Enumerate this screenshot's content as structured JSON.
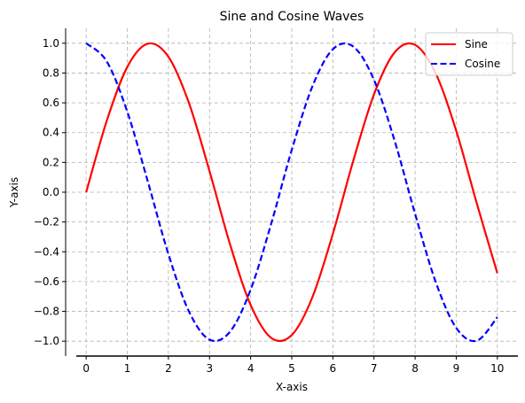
{
  "chart_data": {
    "type": "line",
    "title": "Sine and Cosine Waves",
    "xlabel": "X-axis",
    "ylabel": "Y-axis",
    "xlim": [
      -0.5,
      10.5
    ],
    "ylim": [
      -1.1,
      1.1
    ],
    "xticks": [
      0,
      1,
      2,
      3,
      4,
      5,
      6,
      7,
      8,
      9,
      10
    ],
    "xtick_labels": [
      "0",
      "1",
      "2",
      "3",
      "4",
      "5",
      "6",
      "7",
      "8",
      "9",
      "10"
    ],
    "yticks": [
      -1.0,
      -0.8,
      -0.6,
      -0.4,
      -0.2,
      0.0,
      0.2,
      0.4,
      0.6,
      0.8,
      1.0
    ],
    "ytick_labels": [
      "−1.0",
      "−0.8",
      "−0.6",
      "−0.4",
      "−0.2",
      "0.0",
      "0.2",
      "0.4",
      "0.6",
      "0.8",
      "1.0"
    ],
    "grid": true,
    "legend_position": "top-right",
    "x": [
      0,
      0.5,
      1,
      1.5,
      2,
      2.5,
      3,
      3.5,
      4,
      4.5,
      5,
      5.5,
      6,
      6.5,
      7,
      7.5,
      8,
      8.5,
      9,
      9.5,
      10
    ],
    "series": [
      {
        "name": "Sine",
        "color": "#ff0000",
        "line_style": "solid",
        "values": [
          0.0,
          0.479,
          0.841,
          0.997,
          0.909,
          0.598,
          0.141,
          -0.351,
          -0.757,
          -0.978,
          -0.959,
          -0.706,
          -0.279,
          0.215,
          0.657,
          0.938,
          0.989,
          0.798,
          0.412,
          -0.075,
          -0.544
        ]
      },
      {
        "name": "Cosine",
        "color": "#0000ff",
        "line_style": "dashed",
        "values": [
          1.0,
          0.878,
          0.54,
          0.071,
          -0.416,
          -0.801,
          -0.99,
          -0.936,
          -0.654,
          -0.211,
          0.284,
          0.709,
          0.96,
          0.977,
          0.754,
          0.347,
          -0.146,
          -0.602,
          -0.911,
          -0.997,
          -0.839
        ]
      }
    ]
  }
}
